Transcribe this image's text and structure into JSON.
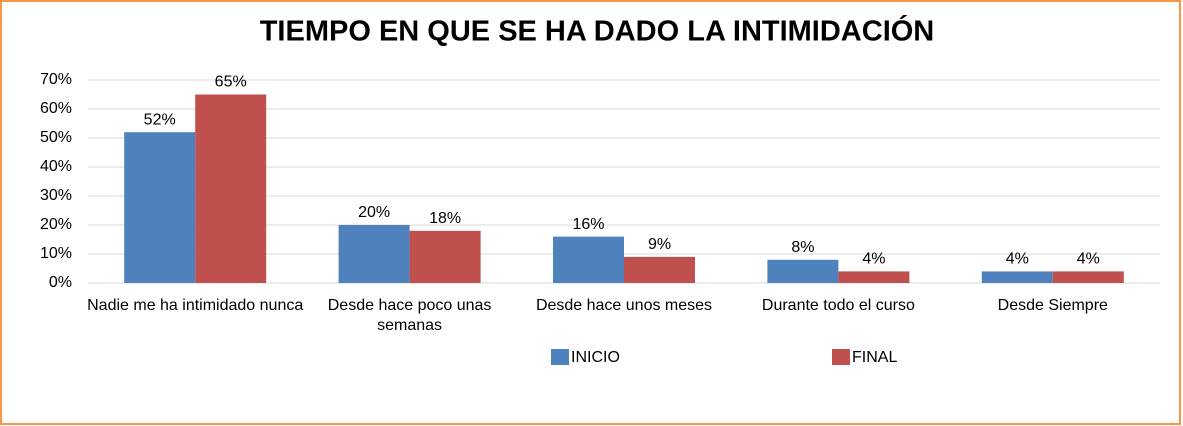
{
  "chart_data": {
    "type": "bar",
    "title": "TIEMPO EN QUE SE HA DADO LA INTIMIDACIÓN",
    "categories": [
      "Nadie me ha intimidado nunca",
      "Desde hace poco unas semanas",
      "Desde hace unos meses",
      "Durante todo el curso",
      "Desde Siempre"
    ],
    "series": [
      {
        "name": "INICIO",
        "color": "#4f81bd",
        "values": [
          52,
          20,
          16,
          8,
          4
        ],
        "value_labels": [
          "52%",
          "20%",
          "16%",
          "8%",
          "4%"
        ]
      },
      {
        "name": "FINAL",
        "color": "#c0504d",
        "values": [
          65,
          18,
          9,
          4,
          4
        ],
        "value_labels": [
          "65%",
          "18%",
          "9%",
          "4%",
          "4%"
        ]
      }
    ],
    "ylim": [
      0,
      70
    ],
    "yticks": [
      {
        "value": 0,
        "label": "0%"
      },
      {
        "value": 10,
        "label": "10%"
      },
      {
        "value": 20,
        "label": "20%"
      },
      {
        "value": 30,
        "label": "30%"
      },
      {
        "value": 40,
        "label": "40%"
      },
      {
        "value": 50,
        "label": "50%"
      },
      {
        "value": 60,
        "label": "60%"
      },
      {
        "value": 70,
        "label": "70%"
      }
    ],
    "grid": true,
    "legend": "bottom"
  }
}
